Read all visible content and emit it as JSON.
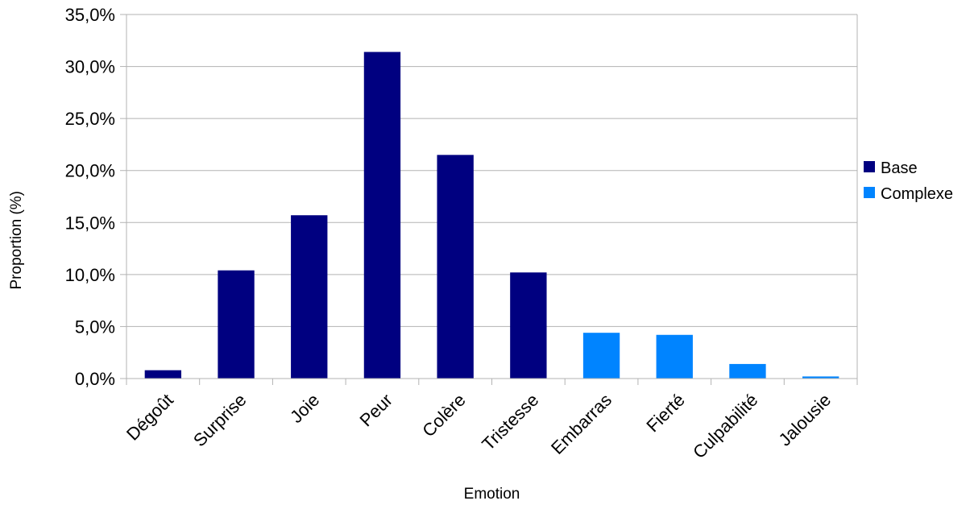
{
  "chart_data": {
    "type": "bar",
    "xlabel": "Emotion",
    "ylabel": "Proportion (%)",
    "ylim": [
      0,
      35
    ],
    "ytick_step": 5,
    "ytick_labels": [
      "0,0%",
      "5,0%",
      "10,0%",
      "15,0%",
      "20,0%",
      "25,0%",
      "30,0%",
      "35,0%"
    ],
    "grid": true,
    "legend_position": "right",
    "categories": [
      "Dégoût",
      "Surprise",
      "Joie",
      "Peur",
      "Colère",
      "Tristesse",
      "Embarras",
      "Fierté",
      "Culpabilité",
      "Jalousie"
    ],
    "series": [
      {
        "name": "Base",
        "color": "#000080",
        "values": [
          0.8,
          10.4,
          15.7,
          31.4,
          21.5,
          10.2,
          null,
          null,
          null,
          null
        ]
      },
      {
        "name": "Complexe",
        "color": "#0084ff",
        "values": [
          null,
          null,
          null,
          null,
          null,
          null,
          4.4,
          4.2,
          1.4,
          0.2
        ]
      }
    ]
  }
}
